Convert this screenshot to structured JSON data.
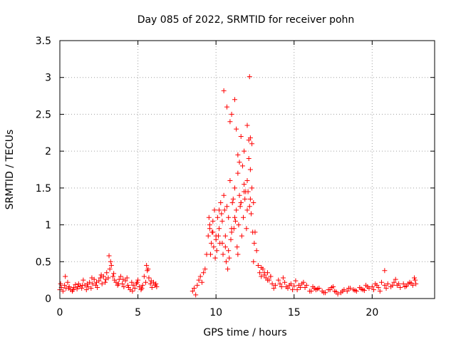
{
  "chart_data": {
    "type": "scatter",
    "title": "Day 085 of 2022, SRMTID for receiver pohn",
    "xlabel": "GPS time / hours",
    "ylabel": "SRMTID / TECUs",
    "xlim": [
      0,
      24
    ],
    "ylim": [
      0,
      3.5
    ],
    "xticks": [
      0,
      5,
      10,
      15,
      20
    ],
    "xtick_labels": [
      "0",
      "5",
      "10",
      "15",
      "20"
    ],
    "yticks": [
      0,
      0.5,
      1,
      1.5,
      2,
      2.5,
      3,
      3.5
    ],
    "ytick_labels": [
      "0",
      "0.5",
      "1",
      "1.5",
      "2",
      "2.5",
      "3",
      "3.5"
    ],
    "grid": true,
    "marker": "+",
    "color": "#ff0000",
    "series": [
      {
        "name": "SRMTID",
        "x": [
          0.0,
          0.1,
          0.2,
          0.3,
          0.4,
          0.5,
          0.6,
          0.7,
          0.8,
          0.9,
          1.0,
          1.1,
          1.2,
          1.3,
          1.4,
          1.5,
          1.6,
          1.7,
          1.8,
          1.9,
          2.0,
          2.1,
          2.2,
          2.3,
          2.4,
          2.5,
          2.6,
          2.7,
          2.8,
          2.9,
          3.0,
          3.1,
          3.2,
          3.3,
          3.4,
          3.5,
          3.6,
          3.7,
          3.8,
          3.9,
          4.0,
          4.1,
          4.2,
          4.3,
          4.4,
          4.5,
          4.6,
          4.7,
          4.8,
          4.9,
          5.0,
          5.1,
          5.2,
          5.3,
          5.4,
          5.5,
          5.6,
          5.7,
          5.8,
          5.9,
          6.0,
          6.1,
          6.2,
          0.05,
          0.35,
          0.55,
          0.85,
          1.15,
          1.45,
          1.75,
          2.05,
          2.35,
          2.65,
          2.95,
          3.15,
          3.25,
          3.45,
          3.75,
          4.05,
          4.35,
          4.65,
          4.95,
          5.25,
          5.55,
          5.65,
          5.85,
          6.15,
          8.5,
          8.6,
          8.7,
          8.8,
          8.9,
          9.0,
          9.1,
          9.2,
          9.3,
          9.4,
          9.5,
          9.6,
          9.7,
          9.8,
          9.9,
          10.0,
          10.1,
          10.2,
          10.3,
          10.4,
          10.5,
          10.6,
          10.7,
          10.8,
          10.9,
          11.0,
          11.1,
          11.2,
          11.3,
          11.4,
          11.5,
          11.6,
          11.7,
          11.8,
          11.9,
          12.0,
          12.1,
          12.2,
          12.3,
          12.4,
          12.5,
          12.6,
          12.7,
          12.8,
          12.9,
          13.0,
          13.1,
          13.2,
          13.3,
          13.4,
          13.5,
          9.55,
          9.65,
          9.75,
          9.85,
          9.95,
          10.05,
          10.15,
          10.25,
          10.35,
          10.45,
          10.55,
          10.65,
          10.75,
          10.85,
          10.95,
          11.05,
          11.15,
          11.25,
          11.35,
          11.45,
          11.55,
          11.65,
          11.75,
          11.85,
          11.95,
          12.05,
          12.15,
          12.25,
          12.35,
          12.45,
          10.5,
          10.7,
          11.0,
          11.3,
          11.4,
          11.6,
          11.8,
          12.0,
          12.1,
          12.15,
          12.3,
          11.2,
          10.9,
          11.5,
          12.2,
          9.6,
          9.8,
          10.0,
          10.2,
          10.4,
          10.6,
          10.8,
          11.0,
          11.2,
          11.4,
          11.6,
          11.8,
          12.0,
          12.2,
          12.4,
          13.6,
          13.8,
          14.0,
          14.2,
          14.4,
          14.6,
          14.8,
          15.0,
          15.2,
          15.4,
          15.6,
          15.8,
          16.0,
          16.2,
          16.4,
          16.6,
          16.8,
          17.0,
          17.2,
          17.4,
          17.6,
          17.8,
          18.0,
          18.2,
          18.4,
          18.6,
          18.8,
          19.0,
          19.2,
          19.4,
          19.6,
          19.8,
          20.0,
          20.2,
          20.4,
          20.6,
          20.8,
          21.0,
          21.2,
          21.4,
          21.6,
          21.8,
          22.0,
          22.2,
          22.4,
          22.6,
          22.8,
          13.7,
          14.1,
          14.5,
          14.9,
          15.3,
          15.7,
          16.1,
          16.5,
          16.9,
          17.3,
          17.7,
          18.1,
          18.5,
          18.9,
          19.3,
          19.7,
          20.1,
          20.5,
          20.9,
          21.3,
          21.7,
          22.1,
          22.5,
          22.75,
          13.3,
          13.5,
          14.3,
          14.7,
          15.1,
          15.5,
          16.3,
          17.5,
          19.5,
          20.3,
          20.8,
          21.5,
          22.3,
          22.7,
          12.9,
          13.1
        ],
        "y": [
          0.12,
          0.15,
          0.1,
          0.18,
          0.14,
          0.22,
          0.16,
          0.12,
          0.1,
          0.15,
          0.19,
          0.13,
          0.2,
          0.17,
          0.14,
          0.25,
          0.18,
          0.12,
          0.16,
          0.22,
          0.14,
          0.2,
          0.26,
          0.18,
          0.15,
          0.24,
          0.28,
          0.2,
          0.3,
          0.22,
          0.35,
          0.28,
          0.4,
          0.45,
          0.3,
          0.25,
          0.22,
          0.18,
          0.26,
          0.3,
          0.2,
          0.16,
          0.24,
          0.28,
          0.15,
          0.12,
          0.22,
          0.18,
          0.14,
          0.2,
          0.25,
          0.16,
          0.12,
          0.18,
          0.3,
          0.22,
          0.38,
          0.28,
          0.2,
          0.15,
          0.22,
          0.18,
          0.16,
          0.2,
          0.3,
          0.14,
          0.12,
          0.16,
          0.18,
          0.2,
          0.28,
          0.22,
          0.32,
          0.26,
          0.58,
          0.5,
          0.34,
          0.2,
          0.26,
          0.18,
          0.1,
          0.22,
          0.14,
          0.45,
          0.4,
          0.24,
          0.2,
          0.1,
          0.14,
          0.05,
          0.18,
          0.25,
          0.3,
          0.22,
          0.35,
          0.4,
          0.6,
          0.85,
          1.0,
          0.75,
          0.9,
          1.2,
          0.8,
          1.1,
          0.95,
          1.3,
          1.05,
          1.4,
          0.85,
          1.25,
          1.1,
          1.6,
          0.95,
          1.35,
          1.5,
          1.2,
          1.7,
          1.4,
          1.3,
          1.8,
          1.55,
          1.45,
          1.6,
          1.9,
          1.75,
          1.5,
          1.3,
          0.9,
          0.65,
          0.45,
          0.35,
          0.3,
          0.4,
          0.32,
          0.28,
          0.35,
          0.25,
          0.3,
          1.1,
          0.6,
          0.9,
          0.7,
          0.55,
          0.65,
          0.85,
          0.75,
          1.15,
          0.6,
          1.2,
          0.5,
          0.4,
          0.55,
          0.8,
          1.3,
          0.95,
          1.05,
          0.7,
          1.0,
          1.25,
          0.85,
          1.1,
          1.35,
          0.95,
          1.45,
          1.25,
          1.15,
          0.9,
          0.75,
          2.82,
          2.6,
          2.5,
          2.3,
          1.95,
          2.2,
          2.0,
          2.35,
          2.15,
          3.01,
          2.1,
          2.7,
          2.4,
          1.85,
          2.18,
          0.95,
          1.05,
          0.85,
          1.2,
          0.75,
          0.7,
          0.65,
          0.9,
          1.1,
          0.6,
          1.3,
          1.45,
          1.2,
          1.35,
          0.5,
          0.2,
          0.18,
          0.25,
          0.16,
          0.22,
          0.14,
          0.2,
          0.17,
          0.12,
          0.15,
          0.22,
          0.18,
          0.1,
          0.16,
          0.12,
          0.14,
          0.1,
          0.08,
          0.12,
          0.15,
          0.1,
          0.06,
          0.08,
          0.12,
          0.1,
          0.14,
          0.12,
          0.1,
          0.15,
          0.12,
          0.18,
          0.14,
          0.16,
          0.2,
          0.15,
          0.22,
          0.18,
          0.2,
          0.16,
          0.22,
          0.18,
          0.15,
          0.2,
          0.17,
          0.22,
          0.18,
          0.2,
          0.14,
          0.2,
          0.16,
          0.12,
          0.18,
          0.15,
          0.1,
          0.13,
          0.08,
          0.12,
          0.09,
          0.1,
          0.14,
          0.11,
          0.13,
          0.16,
          0.12,
          0.1,
          0.14,
          0.18,
          0.2,
          0.16,
          0.21,
          0.25,
          0.25,
          0.3,
          0.28,
          0.18,
          0.24,
          0.2,
          0.14,
          0.16,
          0.11,
          0.18,
          0.38,
          0.26,
          0.2,
          0.28,
          0.42,
          0.35
        ]
      }
    ]
  }
}
